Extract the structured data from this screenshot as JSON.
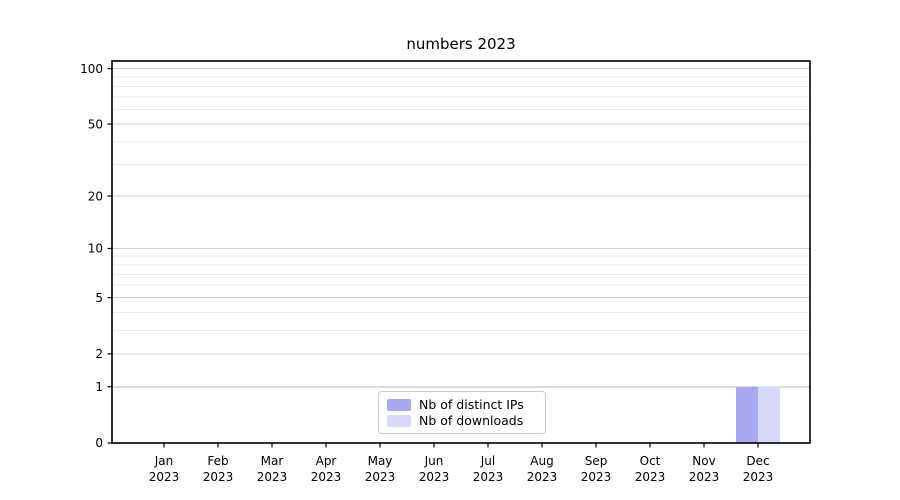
{
  "title": "numbers 2023",
  "colors": {
    "distinct_ips": "#a8a8f0",
    "downloads": "#d8d8f8",
    "grid_major": "#d0d0d0",
    "grid_minor": "#ebebeb",
    "grid_baseline_one": "#b9b9b9",
    "axis": "#000000",
    "tick_label": "#000000",
    "legend_border": "#cccccc"
  },
  "chart_data": {
    "type": "bar",
    "title": "numbers 2023",
    "categories": [
      "Jan",
      "Feb",
      "Mar",
      "Apr",
      "May",
      "Jun",
      "Jul",
      "Aug",
      "Sep",
      "Oct",
      "Nov",
      "Dec"
    ],
    "category_year": "2023",
    "series": [
      {
        "name": "Nb of distinct IPs",
        "color": "#a8a8f0",
        "values": [
          0,
          0,
          0,
          0,
          0,
          0,
          0,
          0,
          0,
          0,
          0,
          1
        ]
      },
      {
        "name": "Nb of downloads",
        "color": "#d8d8f8",
        "values": [
          0,
          0,
          0,
          0,
          0,
          0,
          0,
          0,
          0,
          0,
          0,
          1
        ]
      }
    ],
    "xlabel": "",
    "ylabel": "",
    "yscale": "log1p",
    "ylim": [
      0,
      110
    ],
    "yticks": [
      0,
      1,
      2,
      5,
      10,
      20,
      50,
      100
    ],
    "minor_gridlines": [
      3,
      4,
      6,
      7,
      8,
      9,
      30,
      40,
      60,
      70,
      80,
      90
    ],
    "grid": true,
    "legend_position": "lower center"
  }
}
